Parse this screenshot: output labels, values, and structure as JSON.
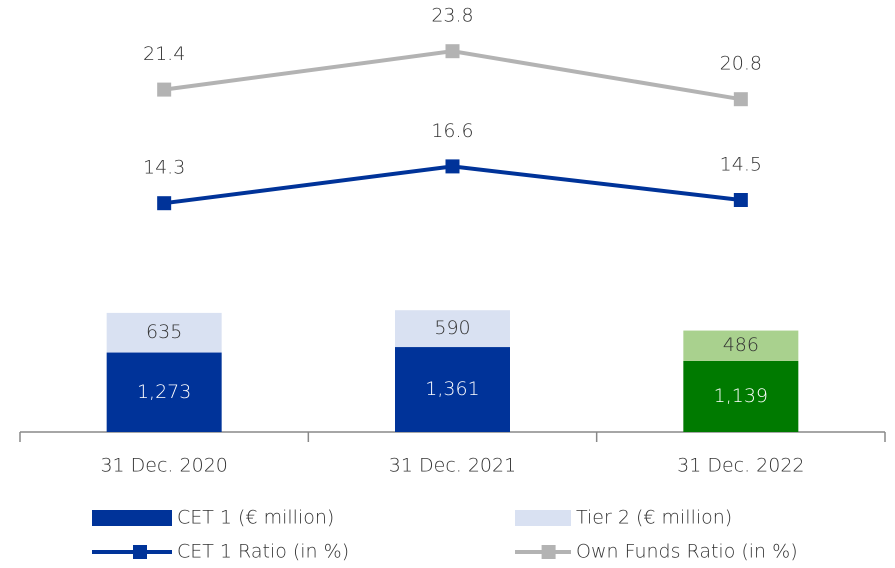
{
  "chart_data": {
    "type": "combo",
    "categories": [
      "31 Dec. 2020",
      "31 Dec. 2021",
      "31 Dec. 2022"
    ],
    "ylim": [
      0,
      6600
    ],
    "y2lim": [
      0,
      25.75
    ],
    "legend": "bottom",
    "series": [
      {
        "name": "CET 1 (€ million)",
        "type": "bar",
        "color": "#003399",
        "colors": [
          "#003399",
          "#003399",
          "#007a00"
        ],
        "label_color": "#ffffff",
        "values": [
          1273,
          1361,
          1139
        ],
        "value_labels": [
          "1,273",
          "1,361",
          "1,139"
        ]
      },
      {
        "name": "Tier 2 (€ million)",
        "type": "bar",
        "color": "#d9e1f2",
        "colors": [
          "#d9e1f2",
          "#d9e1f2",
          "#a9d18e"
        ],
        "label_color": "#333333",
        "values": [
          635,
          590,
          486
        ]
      },
      {
        "name": "CET 1 Ratio (in %)",
        "type": "line",
        "axis": "y2",
        "color": "#003399",
        "values": [
          14.3,
          16.6,
          14.5
        ]
      },
      {
        "name": "Own Funds Ratio (in %)",
        "type": "line",
        "axis": "y2",
        "color": "#b3b3b3",
        "values": [
          21.4,
          23.8,
          20.8
        ]
      }
    ]
  }
}
